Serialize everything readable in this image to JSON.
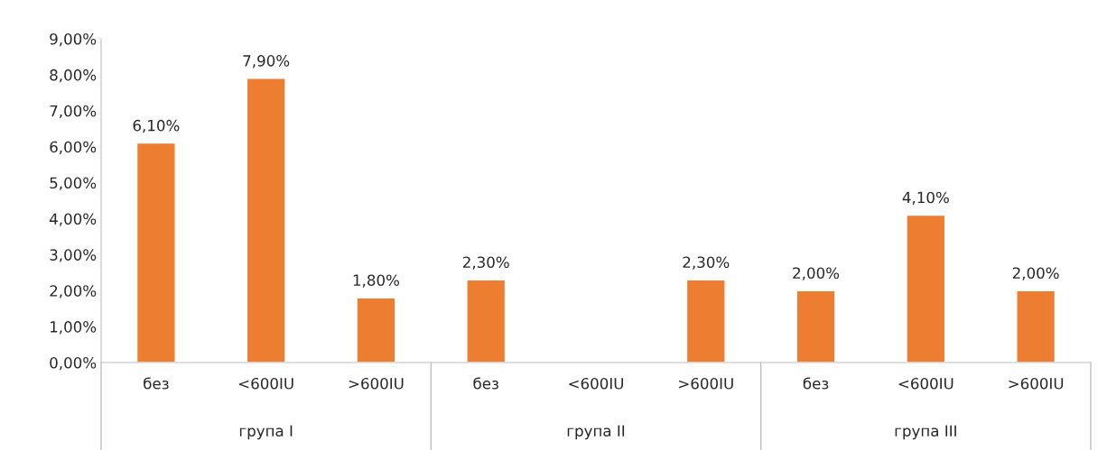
{
  "chart_data": {
    "type": "bar",
    "categories": [
      "без",
      "<600IU",
      ">600IU",
      "без",
      "<600IU",
      ">600IU",
      "без",
      "<600IU",
      ">600IU"
    ],
    "values": [
      6.1,
      7.9,
      1.8,
      2.3,
      null,
      2.3,
      2.0,
      4.1,
      2.0
    ],
    "value_labels": [
      "6,10%",
      "7,90%",
      "1,80%",
      "2,30%",
      null,
      "2,30%",
      "2,00%",
      "4,10%",
      "2,00%"
    ],
    "color": "#ed7d31",
    "ylim": [
      0,
      9
    ],
    "yticks": [
      {
        "value": 0,
        "label": "0,00%"
      },
      {
        "value": 1,
        "label": "1,00%"
      },
      {
        "value": 2,
        "label": "2,00%"
      },
      {
        "value": 3,
        "label": "3,00%"
      },
      {
        "value": 4,
        "label": "4,00%"
      },
      {
        "value": 5,
        "label": "5,00%"
      },
      {
        "value": 6,
        "label": "6,00%"
      },
      {
        "value": 7,
        "label": "7,00%"
      },
      {
        "value": 8,
        "label": "8,00%"
      },
      {
        "value": 9,
        "label": "9,00%"
      }
    ],
    "annotations": [
      "група I",
      "група II",
      "група III"
    ],
    "grid": false
  }
}
